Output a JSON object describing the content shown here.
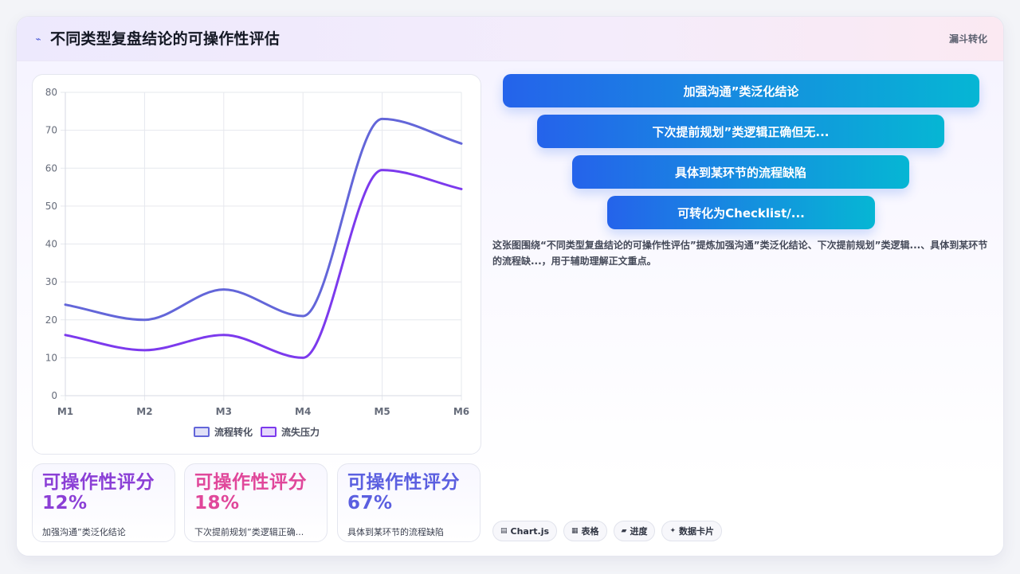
{
  "header": {
    "title": "不同类型复盘结论的可操作性评估",
    "tag": "漏斗转化"
  },
  "chart_data": {
    "type": "line",
    "x": [
      "M1",
      "M2",
      "M3",
      "M4",
      "M5",
      "M6"
    ],
    "ylim": [
      0,
      80
    ],
    "yticks": [
      0,
      10,
      20,
      30,
      40,
      50,
      60,
      70,
      80
    ],
    "grid": true,
    "legend_position": "bottom",
    "smooth": true,
    "series": [
      {
        "name": "流程转化",
        "values": [
          24,
          20,
          28,
          21,
          73,
          66.5
        ],
        "color": "#6366d9"
      },
      {
        "name": "流失压力",
        "values": [
          16,
          12,
          16,
          10,
          59.5,
          54.5
        ],
        "color": "#7c3aed"
      }
    ]
  },
  "stats": [
    {
      "value": "可操作性评分 12%",
      "label": "加强沟通”类泛化结论",
      "color": "#8b3fd6"
    },
    {
      "value": "可操作性评分 18%",
      "label": "下次提前规划”类逻辑正确...",
      "color": "#e0479a"
    },
    {
      "value": "可操作性评分 67%",
      "label": "具体到某环节的流程缺陷",
      "color": "#5b5fe0"
    }
  ],
  "funnel": [
    "加强沟通”类泛化结论",
    "下次提前规划”类逻辑正确但无...",
    "具体到某环节的流程缺陷",
    "可转化为Checklist/..."
  ],
  "description": "这张图围绕“不同类型复盘结论的可操作性评估”提炼加强沟通”类泛化结论、下次提前规划”类逻辑...、具体到某环节的流程缺...，用于辅助理解正文重点。",
  "chips": [
    {
      "icon": "▤",
      "label": "Chart.js"
    },
    {
      "icon": "▦",
      "label": "表格"
    },
    {
      "icon": "▰",
      "label": "进度"
    },
    {
      "icon": "✦",
      "label": "数据卡片"
    }
  ]
}
